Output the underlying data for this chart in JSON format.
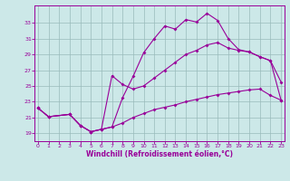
{
  "xlabel": "Windchill (Refroidissement éolien,°C)",
  "background_color": "#cce8e8",
  "line_color": "#990099",
  "grid_color": "#99bbbb",
  "x_ticks": [
    0,
    1,
    2,
    3,
    4,
    5,
    6,
    7,
    8,
    9,
    10,
    11,
    12,
    13,
    14,
    15,
    16,
    17,
    18,
    19,
    20,
    21,
    22,
    23
  ],
  "y_ticks": [
    19,
    21,
    23,
    25,
    27,
    29,
    31,
    33
  ],
  "xlim": [
    -0.3,
    23.3
  ],
  "ylim": [
    18.0,
    35.2
  ],
  "line1_x": [
    0,
    1,
    3,
    4,
    5,
    6,
    7,
    8,
    9,
    10,
    11,
    12,
    13,
    14,
    15,
    16,
    17,
    18,
    19,
    20,
    21,
    22,
    23
  ],
  "line1_y": [
    22.2,
    21.1,
    21.4,
    20.0,
    19.2,
    19.5,
    19.8,
    23.5,
    26.2,
    29.2,
    31.0,
    32.6,
    32.2,
    33.4,
    33.1,
    34.2,
    33.3,
    31.0,
    29.6,
    29.3,
    28.7,
    28.2,
    25.5
  ],
  "line2_x": [
    0,
    1,
    3,
    4,
    5,
    6,
    7,
    8,
    9,
    10,
    11,
    12,
    13,
    14,
    15,
    16,
    17,
    18,
    19,
    20,
    21,
    22,
    23
  ],
  "line2_y": [
    22.2,
    21.1,
    21.4,
    20.0,
    19.2,
    19.5,
    26.3,
    25.2,
    24.6,
    25.0,
    26.0,
    27.0,
    28.0,
    29.0,
    29.5,
    30.2,
    30.5,
    29.8,
    29.5,
    29.3,
    28.7,
    28.2,
    23.2
  ],
  "line3_x": [
    0,
    1,
    3,
    4,
    5,
    6,
    7,
    8,
    9,
    10,
    11,
    12,
    13,
    14,
    15,
    16,
    17,
    18,
    19,
    20,
    21,
    22,
    23
  ],
  "line3_y": [
    22.2,
    21.1,
    21.4,
    20.0,
    19.2,
    19.5,
    19.8,
    20.3,
    21.0,
    21.5,
    22.0,
    22.3,
    22.6,
    23.0,
    23.3,
    23.6,
    23.9,
    24.1,
    24.3,
    24.5,
    24.6,
    23.8,
    23.2
  ]
}
